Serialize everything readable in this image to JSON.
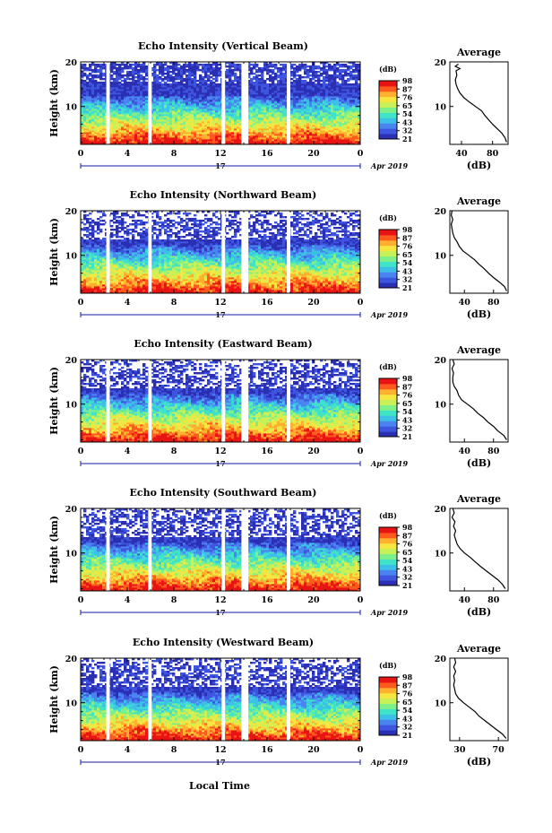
{
  "figure": {
    "date_label": "Apr 2019",
    "day_label": "17",
    "xlabel": "Local Time",
    "avg_title": "Average",
    "avg_xlabel": "(dB)",
    "ylabel": "Height (km)",
    "colorbar_unit": "(dB)"
  },
  "colors": {
    "colormap": [
      "#2b2fb3",
      "#3e55e0",
      "#4a84f0",
      "#3cc0e8",
      "#3ee3c8",
      "#7ef08a",
      "#c8f058",
      "#f5e640",
      "#ffb02e",
      "#ff5a1e",
      "#e81414"
    ],
    "gap": "#ffffff",
    "axis_color": "#000000",
    "xaxis_color": "#1a1aa0"
  },
  "chart_data": [
    {
      "type": "heatmap",
      "title": "Echo Intensity (Vertical Beam)",
      "x_ticks": [
        "0",
        "4",
        "8",
        "12",
        "16",
        "20",
        "0"
      ],
      "xlim": [
        0,
        24
      ],
      "y_ticks": [
        "20",
        "10"
      ],
      "ylim": [
        1.5,
        20
      ],
      "gaps_hours": [
        [
          2.2,
          2.5
        ],
        [
          5.8,
          6.1
        ],
        [
          12.1,
          12.4
        ],
        [
          13.8,
          14.4
        ],
        [
          17.7,
          18.0
        ]
      ],
      "clear_above_km": 19.5,
      "colorbar": {
        "ticks": [
          "98",
          "87",
          "76",
          "65",
          "54",
          "43",
          "32",
          "21"
        ],
        "range": [
          21,
          98
        ]
      },
      "average": {
        "xlim": [
          25,
          100
        ],
        "x_ticks": [
          "40",
          "80"
        ],
        "ylim": [
          1.5,
          20
        ],
        "profile": [
          [
            98,
            2
          ],
          [
            96,
            3
          ],
          [
            92,
            4
          ],
          [
            86,
            5
          ],
          [
            80,
            6
          ],
          [
            75,
            7
          ],
          [
            70,
            8
          ],
          [
            66,
            9
          ],
          [
            58,
            10
          ],
          [
            50,
            11
          ],
          [
            43,
            12
          ],
          [
            38,
            13
          ],
          [
            35,
            14
          ],
          [
            33,
            15
          ],
          [
            32,
            16
          ],
          [
            34,
            17
          ],
          [
            33,
            18
          ],
          [
            38,
            18.5
          ],
          [
            32,
            19
          ],
          [
            36,
            19.5
          ]
        ]
      }
    },
    {
      "type": "heatmap",
      "title": "Echo Intensity (Northward Beam)",
      "x_ticks": [
        "0",
        "4",
        "8",
        "12",
        "16",
        "20",
        "0"
      ],
      "xlim": [
        0,
        24
      ],
      "y_ticks": [
        "20",
        "10"
      ],
      "ylim": [
        1.5,
        20
      ],
      "gaps_hours": [
        [
          2.2,
          2.5
        ],
        [
          5.8,
          6.1
        ],
        [
          12.1,
          12.4
        ],
        [
          13.8,
          14.4
        ],
        [
          17.7,
          18.0
        ]
      ],
      "clear_above_km": 18.0,
      "colorbar": {
        "ticks": [
          "98",
          "87",
          "76",
          "65",
          "54",
          "43",
          "32",
          "21"
        ],
        "range": [
          21,
          98
        ]
      },
      "average": {
        "xlim": [
          20,
          100
        ],
        "x_ticks": [
          "40",
          "80"
        ],
        "ylim": [
          1.5,
          20
        ],
        "profile": [
          [
            98,
            2
          ],
          [
            95,
            3
          ],
          [
            88,
            4
          ],
          [
            80,
            5
          ],
          [
            73,
            6
          ],
          [
            67,
            7
          ],
          [
            60,
            8
          ],
          [
            54,
            9
          ],
          [
            46,
            10
          ],
          [
            38,
            11
          ],
          [
            33,
            12
          ],
          [
            30,
            13
          ],
          [
            26,
            14
          ],
          [
            24,
            15
          ],
          [
            23,
            16
          ],
          [
            22,
            17
          ],
          [
            24,
            18
          ],
          [
            22,
            19
          ],
          [
            23,
            20
          ]
        ]
      }
    },
    {
      "type": "heatmap",
      "title": "Echo Intensity (Eastward Beam)",
      "x_ticks": [
        "0",
        "4",
        "8",
        "12",
        "16",
        "20",
        "0"
      ],
      "xlim": [
        0,
        24
      ],
      "y_ticks": [
        "20",
        "10"
      ],
      "ylim": [
        1.5,
        20
      ],
      "gaps_hours": [
        [
          2.2,
          2.5
        ],
        [
          5.8,
          6.1
        ],
        [
          12.1,
          12.4
        ],
        [
          13.8,
          14.4
        ],
        [
          17.7,
          18.0
        ]
      ],
      "clear_above_km": 18.0,
      "colorbar": {
        "ticks": [
          "98",
          "87",
          "76",
          "65",
          "54",
          "43",
          "32",
          "21"
        ],
        "range": [
          21,
          98
        ]
      },
      "average": {
        "xlim": [
          20,
          100
        ],
        "x_ticks": [
          "40",
          "80"
        ],
        "ylim": [
          1.5,
          20
        ],
        "profile": [
          [
            98,
            2
          ],
          [
            94,
            3
          ],
          [
            86,
            4
          ],
          [
            80,
            5
          ],
          [
            72,
            6
          ],
          [
            66,
            7
          ],
          [
            58,
            8
          ],
          [
            52,
            9
          ],
          [
            44,
            10
          ],
          [
            36,
            11
          ],
          [
            32,
            12
          ],
          [
            30,
            13
          ],
          [
            26,
            14
          ],
          [
            24,
            15
          ],
          [
            24,
            16
          ],
          [
            25,
            17
          ],
          [
            23,
            18
          ],
          [
            26,
            19
          ],
          [
            24,
            20
          ]
        ]
      }
    },
    {
      "type": "heatmap",
      "title": "Echo Intensity (Southward Beam)",
      "x_ticks": [
        "0",
        "4",
        "8",
        "12",
        "16",
        "20",
        "0"
      ],
      "xlim": [
        0,
        24
      ],
      "y_ticks": [
        "20",
        "10"
      ],
      "ylim": [
        1.5,
        20
      ],
      "gaps_hours": [
        [
          2.2,
          2.5
        ],
        [
          5.8,
          6.1
        ],
        [
          12.1,
          12.4
        ],
        [
          13.8,
          14.4
        ],
        [
          17.7,
          18.0
        ]
      ],
      "clear_above_km": 18.5,
      "colorbar": {
        "ticks": [
          "98",
          "87",
          "76",
          "65",
          "54",
          "43",
          "32",
          "21"
        ],
        "range": [
          21,
          98
        ]
      },
      "average": {
        "xlim": [
          20,
          100
        ],
        "x_ticks": [
          "40",
          "80"
        ],
        "ylim": [
          1.5,
          20
        ],
        "profile": [
          [
            96,
            2
          ],
          [
            92,
            3
          ],
          [
            86,
            4
          ],
          [
            78,
            5
          ],
          [
            70,
            6
          ],
          [
            62,
            7
          ],
          [
            55,
            8
          ],
          [
            48,
            9
          ],
          [
            40,
            10
          ],
          [
            34,
            11
          ],
          [
            30,
            12
          ],
          [
            28,
            13
          ],
          [
            26,
            14
          ],
          [
            28,
            15
          ],
          [
            25,
            16
          ],
          [
            27,
            17
          ],
          [
            23,
            18
          ],
          [
            26,
            19
          ],
          [
            24,
            20
          ]
        ]
      }
    },
    {
      "type": "heatmap",
      "title": "Echo Intensity (Westward Beam)",
      "x_ticks": [
        "0",
        "4",
        "8",
        "12",
        "16",
        "20",
        "0"
      ],
      "xlim": [
        0,
        24
      ],
      "y_ticks": [
        "20",
        "10"
      ],
      "ylim": [
        1.5,
        20
      ],
      "gaps_hours": [
        [
          2.2,
          2.5
        ],
        [
          5.8,
          6.1
        ],
        [
          12.1,
          12.4
        ],
        [
          13.8,
          14.4
        ],
        [
          17.7,
          18.0
        ]
      ],
      "clear_above_km": 18.5,
      "colorbar": {
        "ticks": [
          "98",
          "87",
          "76",
          "65",
          "54",
          "43",
          "32",
          "21"
        ],
        "range": [
          21,
          98
        ]
      },
      "average": {
        "xlim": [
          20,
          80
        ],
        "x_ticks": [
          "30",
          "70"
        ],
        "ylim": [
          1.5,
          20
        ],
        "profile": [
          [
            78,
            2
          ],
          [
            74,
            3
          ],
          [
            68,
            4
          ],
          [
            62,
            5
          ],
          [
            56,
            6
          ],
          [
            50,
            7
          ],
          [
            46,
            8
          ],
          [
            40,
            9
          ],
          [
            34,
            10
          ],
          [
            29,
            11
          ],
          [
            26,
            12
          ],
          [
            25,
            13
          ],
          [
            24,
            14
          ],
          [
            25,
            15
          ],
          [
            24,
            16
          ],
          [
            26,
            17
          ],
          [
            24,
            18
          ],
          [
            26,
            19
          ],
          [
            25,
            20
          ]
        ]
      }
    }
  ]
}
